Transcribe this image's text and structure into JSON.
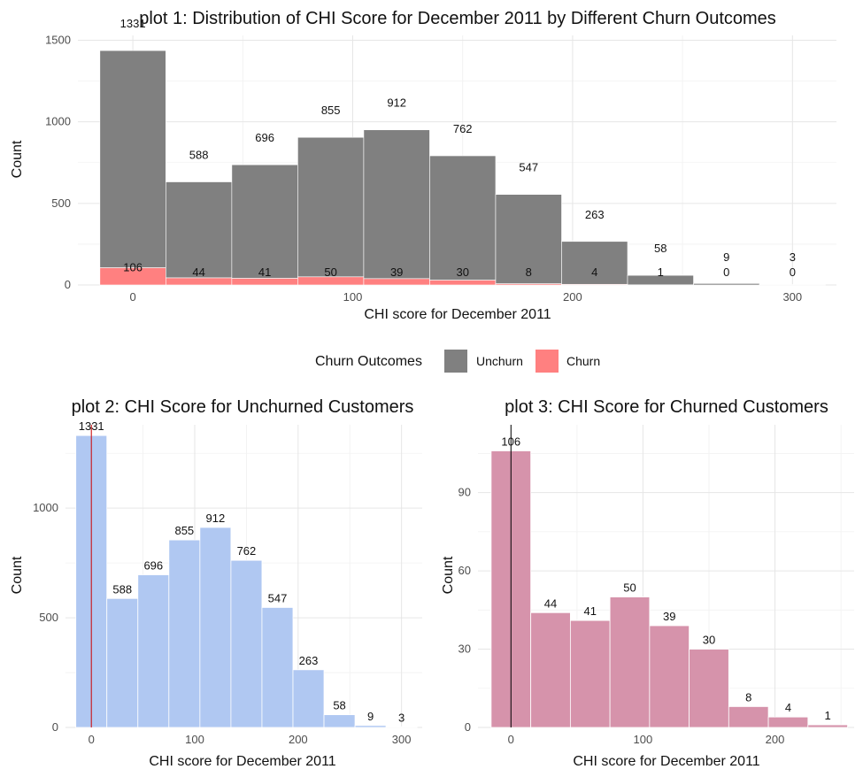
{
  "chart_data": [
    {
      "id": "plot1",
      "type": "bar",
      "stacked": true,
      "title": "plot 1: Distribution of CHI Score for December 2011 by Different Churn Outcomes",
      "xlabel": "CHI score for December 2011",
      "ylabel": "Count",
      "x": [
        0,
        30,
        60,
        90,
        120,
        150,
        180,
        210,
        240,
        270,
        300
      ],
      "bin_width": 30,
      "xlim": [
        -25,
        320
      ],
      "ylim": [
        0,
        1530
      ],
      "x_ticks": [
        0,
        100,
        200,
        300
      ],
      "y_ticks": [
        0,
        500,
        1000,
        1500
      ],
      "series": [
        {
          "name": "Unchurn",
          "color": "#808080",
          "values": [
            1331,
            588,
            696,
            855,
            912,
            762,
            547,
            263,
            58,
            9,
            3
          ]
        },
        {
          "name": "Churn",
          "color": "#ff8080",
          "values": [
            106,
            44,
            41,
            50,
            39,
            30,
            8,
            4,
            1,
            0,
            0
          ]
        }
      ],
      "legend": {
        "title": "Churn Outcomes",
        "position": "bottom"
      },
      "grid": true
    },
    {
      "id": "plot2",
      "type": "bar",
      "title": "plot 2: CHI Score for Unchurned Customers",
      "xlabel": "CHI score for December 2011",
      "ylabel": "Count",
      "x": [
        0,
        30,
        60,
        90,
        120,
        150,
        180,
        210,
        240,
        270,
        300
      ],
      "bin_width": 30,
      "values": [
        1331,
        588,
        696,
        855,
        912,
        762,
        547,
        263,
        58,
        9,
        3
      ],
      "color": "#b0c8f2",
      "vline": {
        "x": 0,
        "color": "#cc0000"
      },
      "xlim": [
        -25,
        320
      ],
      "ylim": [
        0,
        1380
      ],
      "x_ticks": [
        0,
        100,
        200,
        300
      ],
      "y_ticks": [
        0,
        500,
        1000
      ],
      "grid": true
    },
    {
      "id": "plot3",
      "type": "bar",
      "title": "plot 3: CHI Score for Churned Customers",
      "xlabel": "CHI score for December 2011",
      "ylabel": "Count",
      "x": [
        0,
        30,
        60,
        90,
        120,
        150,
        180,
        210,
        240
      ],
      "bin_width": 30,
      "values": [
        106,
        44,
        41,
        50,
        39,
        30,
        8,
        4,
        1
      ],
      "color": "#d693ab",
      "vline": {
        "x": 0,
        "color": "#000000"
      },
      "xlim": [
        -25,
        260
      ],
      "ylim": [
        0,
        116
      ],
      "x_ticks": [
        0,
        100,
        200
      ],
      "y_ticks": [
        0,
        30,
        60,
        90
      ],
      "grid": true
    }
  ]
}
